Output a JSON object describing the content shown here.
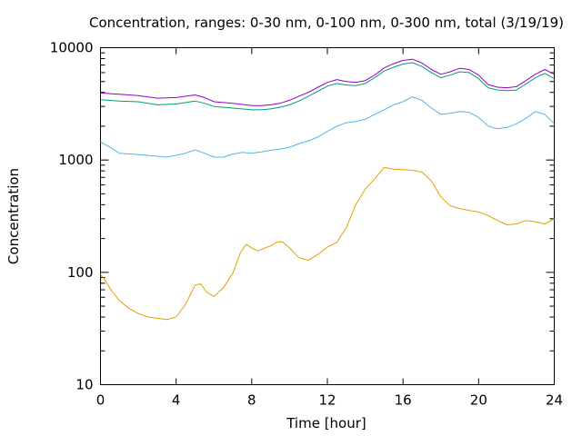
{
  "chart_data": {
    "type": "line",
    "title": "Concentration, ranges: 0-30 nm, 0-100 nm, 0-300 nm, total (3/19/19)",
    "xlabel": "Time [hour]",
    "ylabel": "Concentration",
    "xlim": [
      0,
      24
    ],
    "ylim": [
      10,
      10000
    ],
    "yscale": "log",
    "xticks": [
      0,
      4,
      8,
      12,
      16,
      20,
      24
    ],
    "yticks": [
      10,
      100,
      1000,
      10000
    ],
    "xtick_labels": [
      "0",
      "4",
      "8",
      "12",
      "16",
      "20",
      "24"
    ],
    "ytick_labels": [
      "10",
      "100",
      "1000",
      "10000"
    ],
    "grid": false,
    "legend": "none",
    "series": [
      {
        "color": "#e69f00",
        "x": [
          0,
          0.2,
          0.6,
          1,
          1.5,
          2,
          2.5,
          3,
          3.5,
          4,
          4.5,
          5,
          5.3,
          5.6,
          6,
          6.5,
          7,
          7.4,
          7.7,
          8,
          8.3,
          8.6,
          9,
          9.3,
          9.6,
          10,
          10.5,
          11,
          11.5,
          12,
          12.5,
          13,
          13.5,
          14,
          14.5,
          15,
          15.5,
          16,
          16.5,
          17,
          17.5,
          18,
          18.5,
          19,
          19.5,
          20,
          20.5,
          21,
          21.5,
          22,
          22.5,
          23,
          23.5,
          24
        ],
        "values": [
          96,
          87,
          68,
          56,
          48,
          43,
          40,
          39,
          38,
          40,
          52,
          77,
          79,
          67,
          61,
          73,
          98,
          150,
          178,
          165,
          155,
          162,
          172,
          185,
          188,
          165,
          135,
          128,
          145,
          168,
          185,
          250,
          400,
          550,
          680,
          860,
          830,
          820,
          810,
          780,
          650,
          470,
          390,
          370,
          355,
          345,
          320,
          290,
          265,
          270,
          290,
          282,
          270,
          300
        ]
      },
      {
        "color": "#56b4e9",
        "x": [
          0,
          0.5,
          1,
          2,
          3,
          3.5,
          4,
          4.5,
          5,
          5.5,
          6,
          6.5,
          7,
          7.5,
          8,
          8.5,
          9,
          9.5,
          10,
          10.5,
          11,
          11.5,
          12,
          12.5,
          13,
          13.5,
          14,
          14.5,
          15,
          15.5,
          16,
          16.5,
          17,
          17.5,
          18,
          18.5,
          19,
          19.5,
          20,
          20.5,
          21,
          21.5,
          22,
          22.5,
          23,
          23.5,
          24
        ],
        "values": [
          1450,
          1300,
          1150,
          1120,
          1080,
          1060,
          1100,
          1150,
          1230,
          1150,
          1060,
          1060,
          1130,
          1170,
          1150,
          1180,
          1220,
          1250,
          1300,
          1400,
          1480,
          1600,
          1800,
          2000,
          2150,
          2200,
          2300,
          2550,
          2800,
          3100,
          3300,
          3650,
          3400,
          2900,
          2550,
          2600,
          2700,
          2650,
          2400,
          2000,
          1900,
          1950,
          2100,
          2350,
          2700,
          2550,
          2100
        ]
      },
      {
        "color": "#009e73",
        "x": [
          0,
          1,
          2,
          3,
          4,
          5,
          5.5,
          6,
          7,
          8,
          8.5,
          9,
          9.5,
          10,
          10.5,
          11,
          11.5,
          12,
          12.5,
          13,
          13.5,
          14,
          14.5,
          15,
          15.5,
          16,
          16.5,
          17,
          17.5,
          18,
          18.5,
          19,
          19.5,
          20,
          20.5,
          21,
          21.5,
          22,
          22.5,
          23,
          23.5,
          24
        ],
        "values": [
          3450,
          3350,
          3300,
          3100,
          3150,
          3350,
          3200,
          3000,
          2900,
          2800,
          2800,
          2850,
          2950,
          3100,
          3350,
          3700,
          4100,
          4550,
          4800,
          4650,
          4600,
          4800,
          5400,
          6200,
          6700,
          7150,
          7350,
          6800,
          6000,
          5400,
          5700,
          6100,
          6000,
          5300,
          4400,
          4200,
          4150,
          4200,
          4750,
          5400,
          5900,
          5300
        ]
      },
      {
        "color": "#9400d3",
        "x": [
          0,
          1,
          2,
          3,
          4,
          5,
          5.5,
          6,
          7,
          8,
          8.5,
          9,
          9.5,
          10,
          10.5,
          11,
          11.5,
          12,
          12.5,
          13,
          13.5,
          14,
          14.5,
          15,
          15.5,
          16,
          16.5,
          17,
          17.5,
          18,
          18.5,
          19,
          19.5,
          20,
          20.5,
          21,
          21.5,
          22,
          22.5,
          23,
          23.5,
          24
        ],
        "values": [
          3950,
          3850,
          3750,
          3550,
          3600,
          3800,
          3600,
          3300,
          3200,
          3050,
          3050,
          3100,
          3200,
          3400,
          3700,
          4000,
          4450,
          4900,
          5200,
          5000,
          4900,
          5100,
          5700,
          6600,
          7200,
          7700,
          7900,
          7300,
          6400,
          5800,
          6100,
          6550,
          6400,
          5700,
          4700,
          4450,
          4400,
          4500,
          5100,
          5800,
          6400,
          5800
        ]
      }
    ]
  }
}
